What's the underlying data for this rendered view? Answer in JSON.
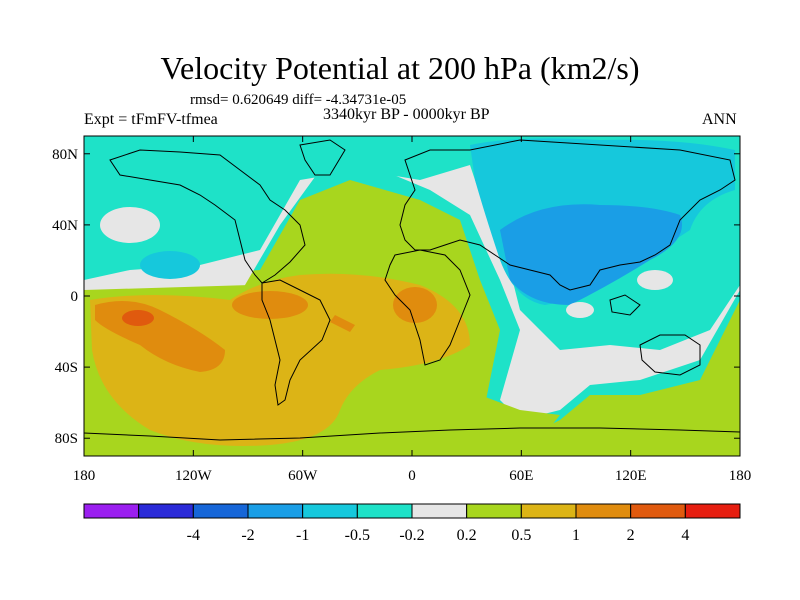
{
  "title": "Velocity Potential at 200 hPa (km2/s)",
  "stats": "rmsd= 0.620649 diff= -4.34731e-05",
  "subtitle": "3340kyr BP - 0000kyr BP",
  "left_label": "Expt = tFmFV-tfmea",
  "right_label": "ANN",
  "axes": {
    "lat_ticks": [
      {
        "value": 80,
        "label": "80N"
      },
      {
        "value": 40,
        "label": "40N"
      },
      {
        "value": 0,
        "label": "0"
      },
      {
        "value": -40,
        "label": "40S"
      },
      {
        "value": -80,
        "label": "80S"
      }
    ],
    "lon_ticks": [
      {
        "value": -180,
        "label": "180"
      },
      {
        "value": -120,
        "label": "120W"
      },
      {
        "value": -60,
        "label": "60W"
      },
      {
        "value": 0,
        "label": "0"
      },
      {
        "value": 60,
        "label": "60E"
      },
      {
        "value": 120,
        "label": "120E"
      },
      {
        "value": 180,
        "label": "180"
      }
    ]
  },
  "colorbar": {
    "colors": [
      "#9b1ff0",
      "#2b2bd8",
      "#1666d8",
      "#1a9ee6",
      "#16c8dc",
      "#1ee2c8",
      "#e6e6e6",
      "#a8d61e",
      "#dcb416",
      "#e08c0e",
      "#e05a0e",
      "#e61e10"
    ],
    "labels": [
      "-4",
      "-2",
      "-1",
      "-0.5",
      "-0.2",
      "0.2",
      "0.5",
      "1",
      "2",
      "4"
    ]
  }
}
